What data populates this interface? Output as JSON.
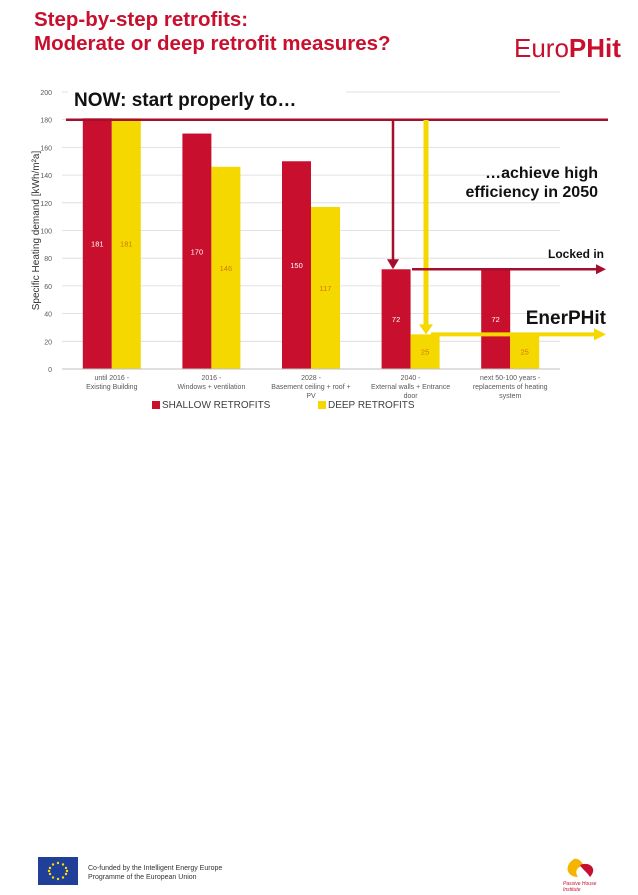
{
  "header": {
    "title_line1": "Step-by-step retrofits:",
    "title_line2": "Moderate or deep retrofit measures?"
  },
  "logo": {
    "part1": "Euro",
    "part2": "PHit"
  },
  "chart_data": {
    "type": "bar",
    "ylabel": "Specific Heating demand [kWh/m²a]",
    "ylim": [
      0,
      200
    ],
    "yticks": [
      0,
      20,
      40,
      60,
      80,
      100,
      120,
      140,
      160,
      180,
      200
    ],
    "grid": true,
    "legend": "bottom",
    "categories": [
      [
        "until 2016 -",
        "Existing Building"
      ],
      [
        "2016 -",
        "Windows + ventilation"
      ],
      [
        "2028 -",
        "Basement ceiling + roof +",
        "PV"
      ],
      [
        "2040 -",
        "External walls + Entrance",
        "door"
      ],
      [
        "next 50-100 years -",
        "replacements of heating",
        "system"
      ]
    ],
    "series": [
      {
        "name": "SHALLOW RETROFITS",
        "color": "#c8102e",
        "label_color": "#ffffff",
        "values": [
          181,
          170,
          150,
          72,
          72
        ]
      },
      {
        "name": "DEEP RETROFITS",
        "color": "#f5d800",
        "label_color": "#d07b00",
        "values": [
          181,
          146,
          117,
          25,
          25
        ]
      }
    ],
    "annotations": {
      "now": "NOW: start properly to…",
      "achieve_line1": "…achieve high",
      "achieve_line2": "efficiency in 2050",
      "locked": "Locked in",
      "enerphit": "EnerPHit"
    }
  },
  "footer": {
    "text_line1": "Co-funded by the Intelligent Energy Europe",
    "text_line2": "Programme of the European Union",
    "pht_line1": "Passive House",
    "pht_line2": "Institute"
  }
}
